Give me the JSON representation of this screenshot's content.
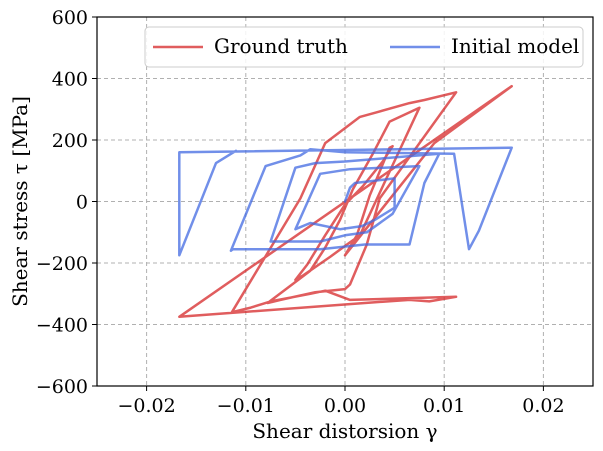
{
  "chart_data": {
    "type": "line",
    "xlabel": "Shear distorsion γ",
    "ylabel": "Shear stress τ [MPa]",
    "xlim": [
      -0.025,
      0.025
    ],
    "ylim": [
      -600,
      600
    ],
    "xticks": [
      {
        "value": -0.02,
        "label": "−0.02"
      },
      {
        "value": -0.01,
        "label": "−0.01"
      },
      {
        "value": 0.0,
        "label": "0.00"
      },
      {
        "value": 0.01,
        "label": "0.01"
      },
      {
        "value": 0.02,
        "label": "0.02"
      }
    ],
    "yticks": [
      {
        "value": -600,
        "label": "−600"
      },
      {
        "value": -400,
        "label": "−400"
      },
      {
        "value": -200,
        "label": "−200"
      },
      {
        "value": 0,
        "label": "0"
      },
      {
        "value": 200,
        "label": "200"
      },
      {
        "value": 400,
        "label": "400"
      },
      {
        "value": 600,
        "label": "600"
      }
    ],
    "grid": true,
    "legend": {
      "placement": "top-right",
      "columns": 2
    },
    "series": [
      {
        "name": "Ground truth",
        "color": "#d62728",
        "x": [
          0.0,
          0.0012,
          0.0025,
          0.0045,
          0.0048,
          0.0038,
          0.0018,
          0.0,
          -0.002,
          -0.0038,
          -0.005,
          -0.0042,
          -0.0015,
          0.0002,
          0.0015,
          0.0075,
          0.0045,
          0.0028,
          0.0008,
          -0.0005,
          -0.002,
          -0.0035,
          -0.0078,
          -0.0065,
          -0.003,
          0.0,
          0.0005,
          0.0022,
          0.0035,
          0.0112,
          0.008,
          0.0065,
          0.0032,
          0.0015,
          -0.002,
          -0.0045,
          -0.0114,
          -0.0095,
          -0.0075,
          -0.0035,
          -0.002,
          0.0005,
          0.0112,
          0.0085,
          0.0065,
          0.002,
          -0.0167,
          -0.0167,
          0.0168,
          0.0168,
          0.0168,
          0.009,
          0.0
        ],
        "y": [
          -175,
          -110,
          20,
          175,
          180,
          130,
          50,
          -10,
          -110,
          -205,
          -255,
          -240,
          -180,
          -140,
          -110,
          305,
          260,
          155,
          40,
          -60,
          -150,
          -225,
          -330,
          -320,
          -295,
          -285,
          -270,
          -140,
          10,
          355,
          330,
          320,
          290,
          275,
          190,
          10,
          -360,
          -345,
          -325,
          -300,
          -290,
          -320,
          -310,
          -325,
          -320,
          -330,
          -375,
          -375,
          375,
          375,
          375,
          190,
          -175
        ]
      },
      {
        "name": "Initial model",
        "color": "#4169e1",
        "x": [
          0.0,
          0.0005,
          0.001,
          0.005,
          0.005,
          0.003,
          0.0017,
          -0.0005,
          -0.0035,
          -0.005,
          -0.0025,
          0.0005,
          0.0075,
          0.0048,
          0.0022,
          0.0,
          -0.0025,
          -0.0075,
          -0.005,
          -0.003,
          0.0,
          0.0095,
          0.008,
          0.0065,
          0.002,
          -0.0025,
          -0.0113,
          -0.0115,
          -0.008,
          -0.0045,
          -0.0035,
          0.0,
          0.011,
          0.0125,
          0.0135,
          0.0168,
          -0.0167,
          -0.0167,
          -0.013,
          -0.011
        ],
        "y": [
          0,
          45,
          60,
          75,
          -20,
          -60,
          -80,
          -90,
          -70,
          -90,
          90,
          105,
          115,
          -40,
          -100,
          -110,
          -130,
          -130,
          110,
          125,
          130,
          155,
          60,
          -140,
          -140,
          -155,
          -155,
          -160,
          115,
          150,
          170,
          160,
          155,
          -155,
          -95,
          175,
          160,
          -175,
          125,
          165
        ]
      }
    ]
  }
}
